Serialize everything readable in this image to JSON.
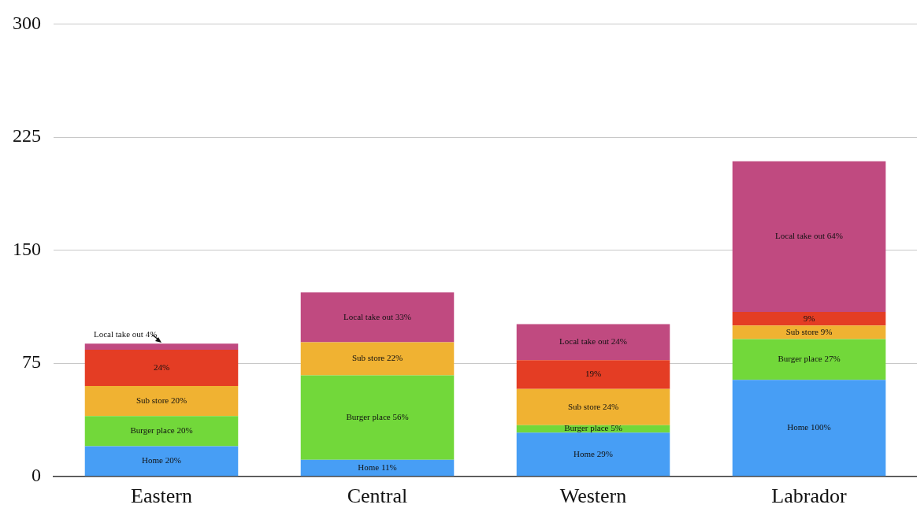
{
  "chart_data": {
    "type": "bar",
    "stacked": true,
    "categories": [
      "Eastern",
      "Central",
      "Western",
      "Labrador"
    ],
    "ylim": [
      0,
      300
    ],
    "yticks": [
      0,
      75,
      150,
      225,
      300
    ],
    "grid": "y",
    "legend": false,
    "series": [
      {
        "color": "#479ef5",
        "values": [
          20,
          11,
          29,
          64
        ],
        "value_labels": [
          "Home 20%",
          "Home 11%",
          "Home 29%",
          "Home 100%"
        ]
      },
      {
        "color": "#72d83a",
        "values": [
          20,
          56,
          5,
          27
        ],
        "value_labels": [
          "Burger place 20%",
          "Burger place 56%",
          "Burger place 5%",
          "Burger place 27%"
        ]
      },
      {
        "color": "#f0b232",
        "values": [
          20,
          22,
          24,
          9
        ],
        "value_labels": [
          "Sub store 20%",
          "Sub store 22%",
          "Sub store 24%",
          "Sub store 9%"
        ]
      },
      {
        "color": "#e43d24",
        "values": [
          24,
          0,
          19,
          9
        ],
        "value_labels": [
          "24%",
          null,
          "19%",
          "9%"
        ]
      },
      {
        "color": "#c04a80",
        "values": [
          4,
          33,
          24,
          100
        ],
        "value_labels": [
          null,
          "Local take out 33%",
          "Local take out 24%",
          "Local take out 64%"
        ]
      }
    ],
    "annotations": [
      {
        "text": "Local take out 4%",
        "x": "Eastern",
        "y": 88
      }
    ]
  }
}
